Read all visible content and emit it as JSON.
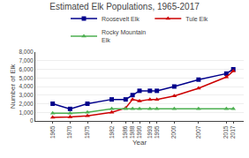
{
  "chart_data": {
    "type": "line",
    "title": "Estimated Elk Populations, 1965-2017",
    "xlabel": "Year",
    "ylabel": "Number of Elk",
    "x": [
      1965,
      1970,
      1975,
      1982,
      1986,
      1988,
      1990,
      1993,
      1995,
      2000,
      2007,
      2015,
      2017
    ],
    "series": [
      {
        "name": "Roosevelt Elk",
        "color": "#00008B",
        "marker": "square",
        "values": [
          2000,
          1400,
          2000,
          2500,
          2500,
          3000,
          3500,
          3500,
          3500,
          4000,
          4800,
          5500,
          6000
        ]
      },
      {
        "name": "Tule Elk",
        "color": "#CC0000",
        "marker": "triangle-up",
        "values": [
          400,
          450,
          600,
          1000,
          1500,
          2500,
          2300,
          2500,
          2500,
          2900,
          3800,
          5100,
          5800
        ]
      },
      {
        "name": "Rocky Mountain\nElk",
        "color": "#4CAF50",
        "marker": "triangle-up",
        "values": [
          900,
          900,
          1000,
          1400,
          1400,
          1400,
          1400,
          1400,
          1400,
          1400,
          1400,
          1400,
          1400
        ]
      }
    ],
    "xlim": [
      1960,
      2020
    ],
    "xticks": [
      1965,
      1970,
      1975,
      1982,
      1986,
      1988,
      1990,
      1993,
      1995,
      2000,
      2007,
      2015,
      2017
    ],
    "ylim": [
      0,
      8000
    ],
    "yticks": [
      0,
      {
        "value": 1000,
        "label": "1,000"
      },
      {
        "value": 2000,
        "label": "2,000"
      },
      {
        "value": 3000,
        "label": "3,000"
      },
      {
        "value": 4000,
        "label": "4,000"
      },
      {
        "value": 5000,
        "label": "5,000"
      },
      {
        "value": 6000,
        "label": "6,000"
      },
      {
        "value": 7000,
        "label": "7,000"
      },
      {
        "value": 8000,
        "label": "8,000"
      }
    ],
    "grid": true,
    "legend": "top"
  }
}
